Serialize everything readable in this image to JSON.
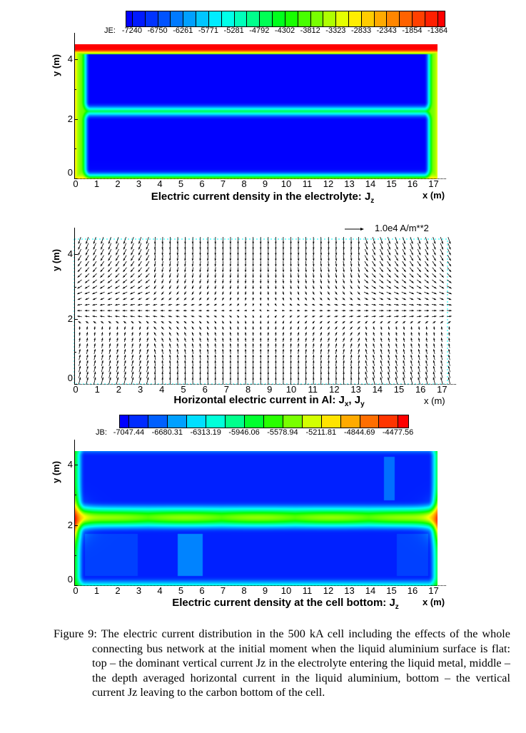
{
  "chart_data": [
    {
      "type": "heatmap",
      "title": "Electric current density in the electrolyte: J",
      "title_sub": "z",
      "xlabel": "x (m)",
      "ylabel": "y (m)",
      "xlim": [
        0,
        17.3
      ],
      "ylim": [
        0,
        4.5
      ],
      "xticks": [
        "0",
        "1",
        "2",
        "3",
        "4",
        "5",
        "6",
        "7",
        "8",
        "9",
        "10",
        "11",
        "12",
        "13",
        "14",
        "15",
        "16",
        "17"
      ],
      "yticks": [
        "0",
        "2",
        "4"
      ],
      "colorbar": {
        "name": "JE:",
        "levels": [
          "-7240",
          "-6750",
          "-6261",
          "-5771",
          "-5281",
          "-4792",
          "-4302",
          "-3812",
          "-3323",
          "-2833",
          "-2343",
          "-1854",
          "-1364"
        ],
        "swatches": 26
      }
    },
    {
      "type": "vector",
      "title": "Horizontal electric current in Al: J",
      "title_sub1": "x",
      "title_mid": ", J",
      "title_sub2": "y",
      "xlabel": "x (m)",
      "ylabel": "y (m)",
      "xlim": [
        0,
        17.5
      ],
      "ylim": [
        0,
        4.5
      ],
      "xticks": [
        "0",
        "1",
        "2",
        "3",
        "4",
        "5",
        "6",
        "7",
        "8",
        "9",
        "10",
        "11",
        "12",
        "13",
        "14",
        "15",
        "16",
        "17"
      ],
      "yticks": [
        "0",
        "2",
        "4"
      ],
      "reference_vector": "1.0e4 A/m**2"
    },
    {
      "type": "heatmap",
      "title": "Electric current density at the cell bottom: J",
      "title_sub": "z",
      "xlabel": "x (m)",
      "ylabel": "y (m)",
      "xlim": [
        0,
        17.3
      ],
      "ylim": [
        0,
        4.5
      ],
      "xticks": [
        "0",
        "1",
        "2",
        "3",
        "4",
        "5",
        "6",
        "7",
        "8",
        "9",
        "10",
        "11",
        "12",
        "13",
        "14",
        "15",
        "16",
        "17"
      ],
      "yticks": [
        "0",
        "2",
        "4"
      ],
      "colorbar": {
        "name": "JB:",
        "levels": [
          "-7047.44",
          "-6680.31",
          "-6313.19",
          "-5946.06",
          "-5578.94",
          "-5211.81",
          "-4844.69",
          "-4477.56"
        ],
        "swatches": 16
      }
    }
  ],
  "caption": {
    "label": "Figure 9:",
    "text": "The electric current distribution in the 500 kA cell including the effects of the whole connecting bus network at the initial moment when the liquid aluminium surface is flat: top – the dominant vertical current Jz in the electrolyte entering the liquid metal, middle – the depth averaged horizontal current in the liquid aluminium, bottom – the vertical current Jz leaving to the carbon bottom of the cell."
  }
}
